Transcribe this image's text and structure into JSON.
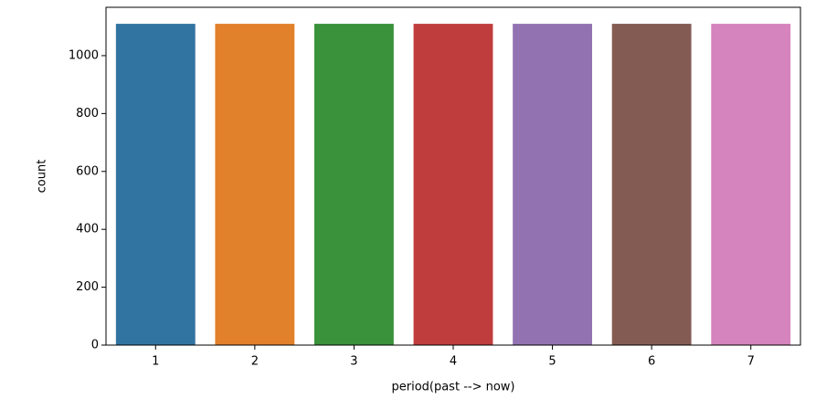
{
  "chart_data": {
    "type": "bar",
    "xlabel": "period(past --> now)",
    "ylabel": "count",
    "categories": [
      "1",
      "2",
      "3",
      "4",
      "5",
      "6",
      "7"
    ],
    "values": [
      1110,
      1110,
      1110,
      1110,
      1110,
      1110,
      1110
    ],
    "colors": [
      "#3274a1",
      "#e1812c",
      "#3a923a",
      "#c03d3e",
      "#9372b2",
      "#845b53",
      "#d684bd"
    ],
    "ylim": [
      0,
      1167
    ],
    "yticks": [
      0,
      200,
      400,
      600,
      800,
      1000
    ],
    "grid": false
  }
}
